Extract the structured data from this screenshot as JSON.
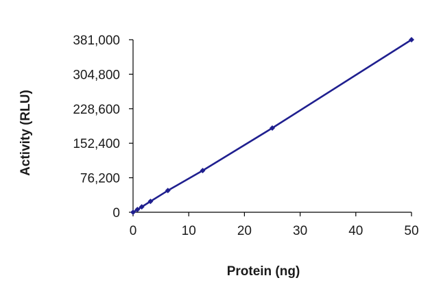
{
  "chart_data": {
    "type": "line",
    "title": "",
    "xlabel": "Protein (ng)",
    "ylabel": "Activity (RLU)",
    "xlim": [
      0,
      50
    ],
    "ylim": [
      0,
      381000
    ],
    "x_ticks": [
      0,
      10,
      20,
      30,
      40,
      50
    ],
    "x_tick_labels": [
      "0",
      "10",
      "20",
      "30",
      "40",
      "50"
    ],
    "y_ticks": [
      0,
      76200,
      152400,
      228600,
      304800,
      381000
    ],
    "y_tick_labels": [
      "0",
      "76,200",
      "152,400",
      "228,600",
      "304,800",
      "381,000"
    ],
    "grid": false,
    "legend": "none",
    "series": [
      {
        "color": "#1f1f8f",
        "marker": "diamond",
        "x": [
          0,
          0.78,
          1.56,
          3.13,
          6.25,
          12.5,
          25,
          50
        ],
        "y": [
          0,
          6000,
          12000,
          24000,
          48000,
          92000,
          186000,
          381000
        ]
      }
    ]
  }
}
